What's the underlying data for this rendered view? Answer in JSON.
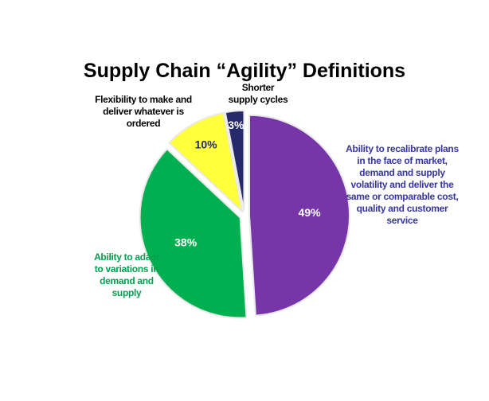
{
  "chart_data": {
    "type": "pie",
    "title": "Supply Chain “Agility” Definitions",
    "categories": [
      "Ability to recalibrate plans in the face of market, demand and supply volatility and deliver the same or comparable cost, quality and customer service",
      "Ability to adapt to variations in demand and supply",
      "Flexibility to make and deliver whatever is ordered",
      "Shorter supply cycles"
    ],
    "values": [
      49,
      38,
      10,
      3
    ],
    "value_labels": [
      "49%",
      "38%",
      "10%",
      "3%"
    ],
    "colors": [
      "#7636a8",
      "#00b050",
      "#ffff3c",
      "#262a6a"
    ],
    "label_colors": [
      "#3636a0",
      "#00a050",
      "#000000",
      "#000000"
    ],
    "value_label_colors": [
      "#ffffff",
      "#ffffff",
      "#262a6a",
      "#ffffff"
    ]
  }
}
